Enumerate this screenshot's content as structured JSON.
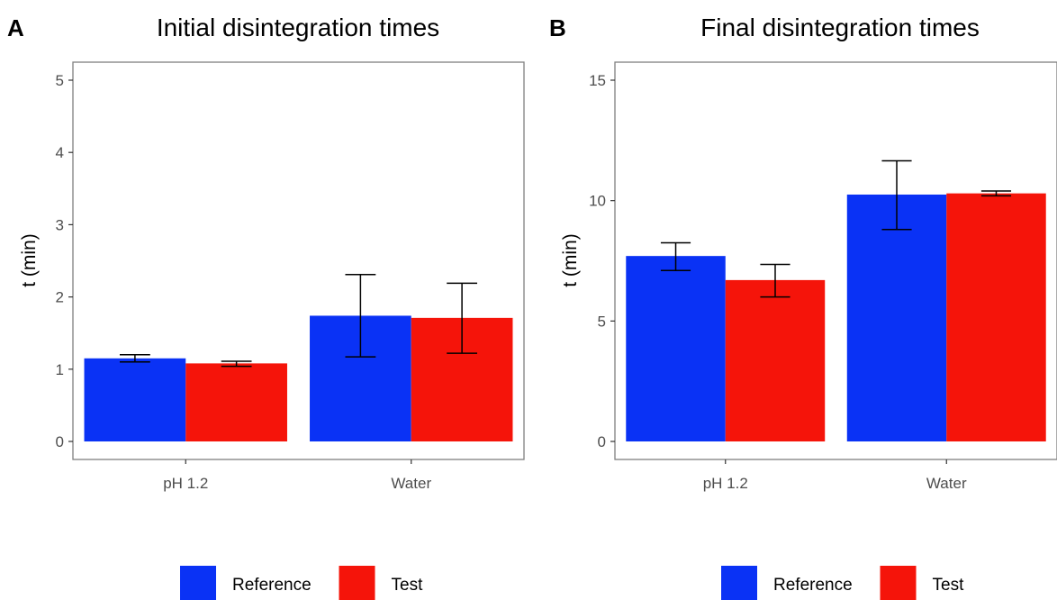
{
  "chart_data": [
    {
      "panel_label": "A",
      "type": "bar",
      "title": "Initial disintegration times",
      "xlabel": "",
      "ylabel": "t (min)",
      "categories": [
        "pH 1.2",
        "Water"
      ],
      "ylim": [
        0,
        5
      ],
      "yticks": [
        "0",
        "1",
        "2",
        "3",
        "4",
        "5"
      ],
      "grid": false,
      "legend": "bottom",
      "series": [
        {
          "name": "Reference",
          "color": "#0a32f5",
          "values": [
            1.15,
            1.74
          ],
          "error_low": [
            1.1,
            1.17
          ],
          "error_high": [
            1.2,
            2.31
          ]
        },
        {
          "name": "Test",
          "color": "#f5140a",
          "values": [
            1.08,
            1.71
          ],
          "error_low": [
            1.04,
            1.22
          ],
          "error_high": [
            1.11,
            2.19
          ]
        }
      ]
    },
    {
      "panel_label": "B",
      "type": "bar",
      "title": "Final disintegration times",
      "xlabel": "",
      "ylabel": "t (min)",
      "categories": [
        "pH 1.2",
        "Water"
      ],
      "ylim": [
        0,
        15
      ],
      "yticks": [
        "0",
        "5",
        "10",
        "15"
      ],
      "grid": false,
      "legend": "bottom",
      "series": [
        {
          "name": "Reference",
          "color": "#0a32f5",
          "values": [
            7.7,
            10.25
          ],
          "error_low": [
            7.1,
            8.8
          ],
          "error_high": [
            8.25,
            11.65
          ]
        },
        {
          "name": "Test",
          "color": "#f5140a",
          "values": [
            6.7,
            10.3
          ],
          "error_low": [
            6.0,
            10.2
          ],
          "error_high": [
            7.35,
            10.4
          ]
        }
      ]
    }
  ]
}
